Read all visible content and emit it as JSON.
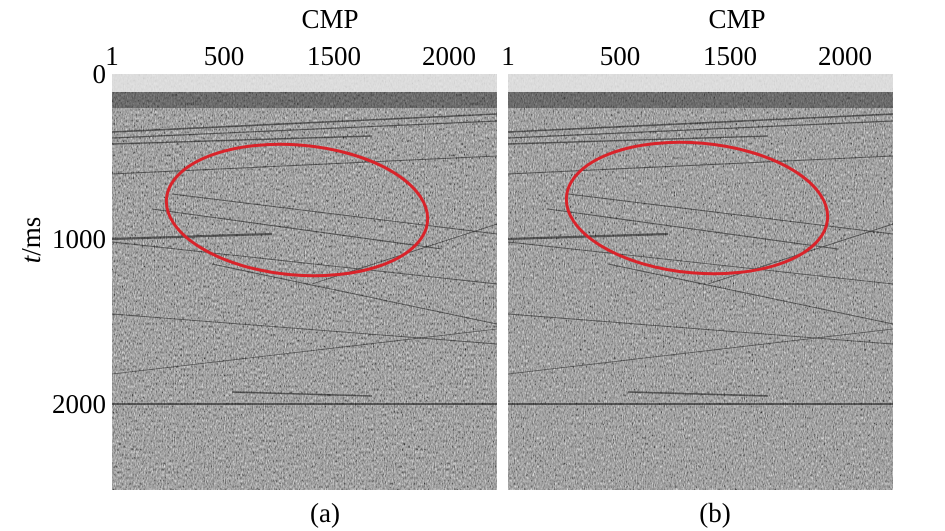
{
  "chart_data": [
    {
      "type": "heatmap",
      "panel_label": "(a)",
      "xlabel": "CMP",
      "x_ticks": [
        "1",
        "500",
        "1500",
        "2000"
      ],
      "x_tick_values": [
        1,
        500,
        1500,
        2000
      ],
      "ylabel_italic": "t",
      "ylabel_rest": "/ms",
      "y_ticks": [
        "0",
        "1000",
        "2000"
      ],
      "y_tick_values": [
        0,
        1000,
        2000
      ],
      "xlim": [
        1,
        2350
      ],
      "ylim": [
        0,
        2520
      ],
      "ellipse_color": "#d9232a"
    },
    {
      "type": "heatmap",
      "panel_label": "(b)",
      "xlabel": "CMP",
      "x_ticks": [
        "1",
        "500",
        "1500",
        "2000"
      ],
      "x_tick_values": [
        1,
        500,
        1500,
        2000
      ],
      "ylim": [
        0,
        2520
      ],
      "xlim": [
        1,
        2350
      ],
      "ellipse_color": "#d9232a"
    }
  ]
}
